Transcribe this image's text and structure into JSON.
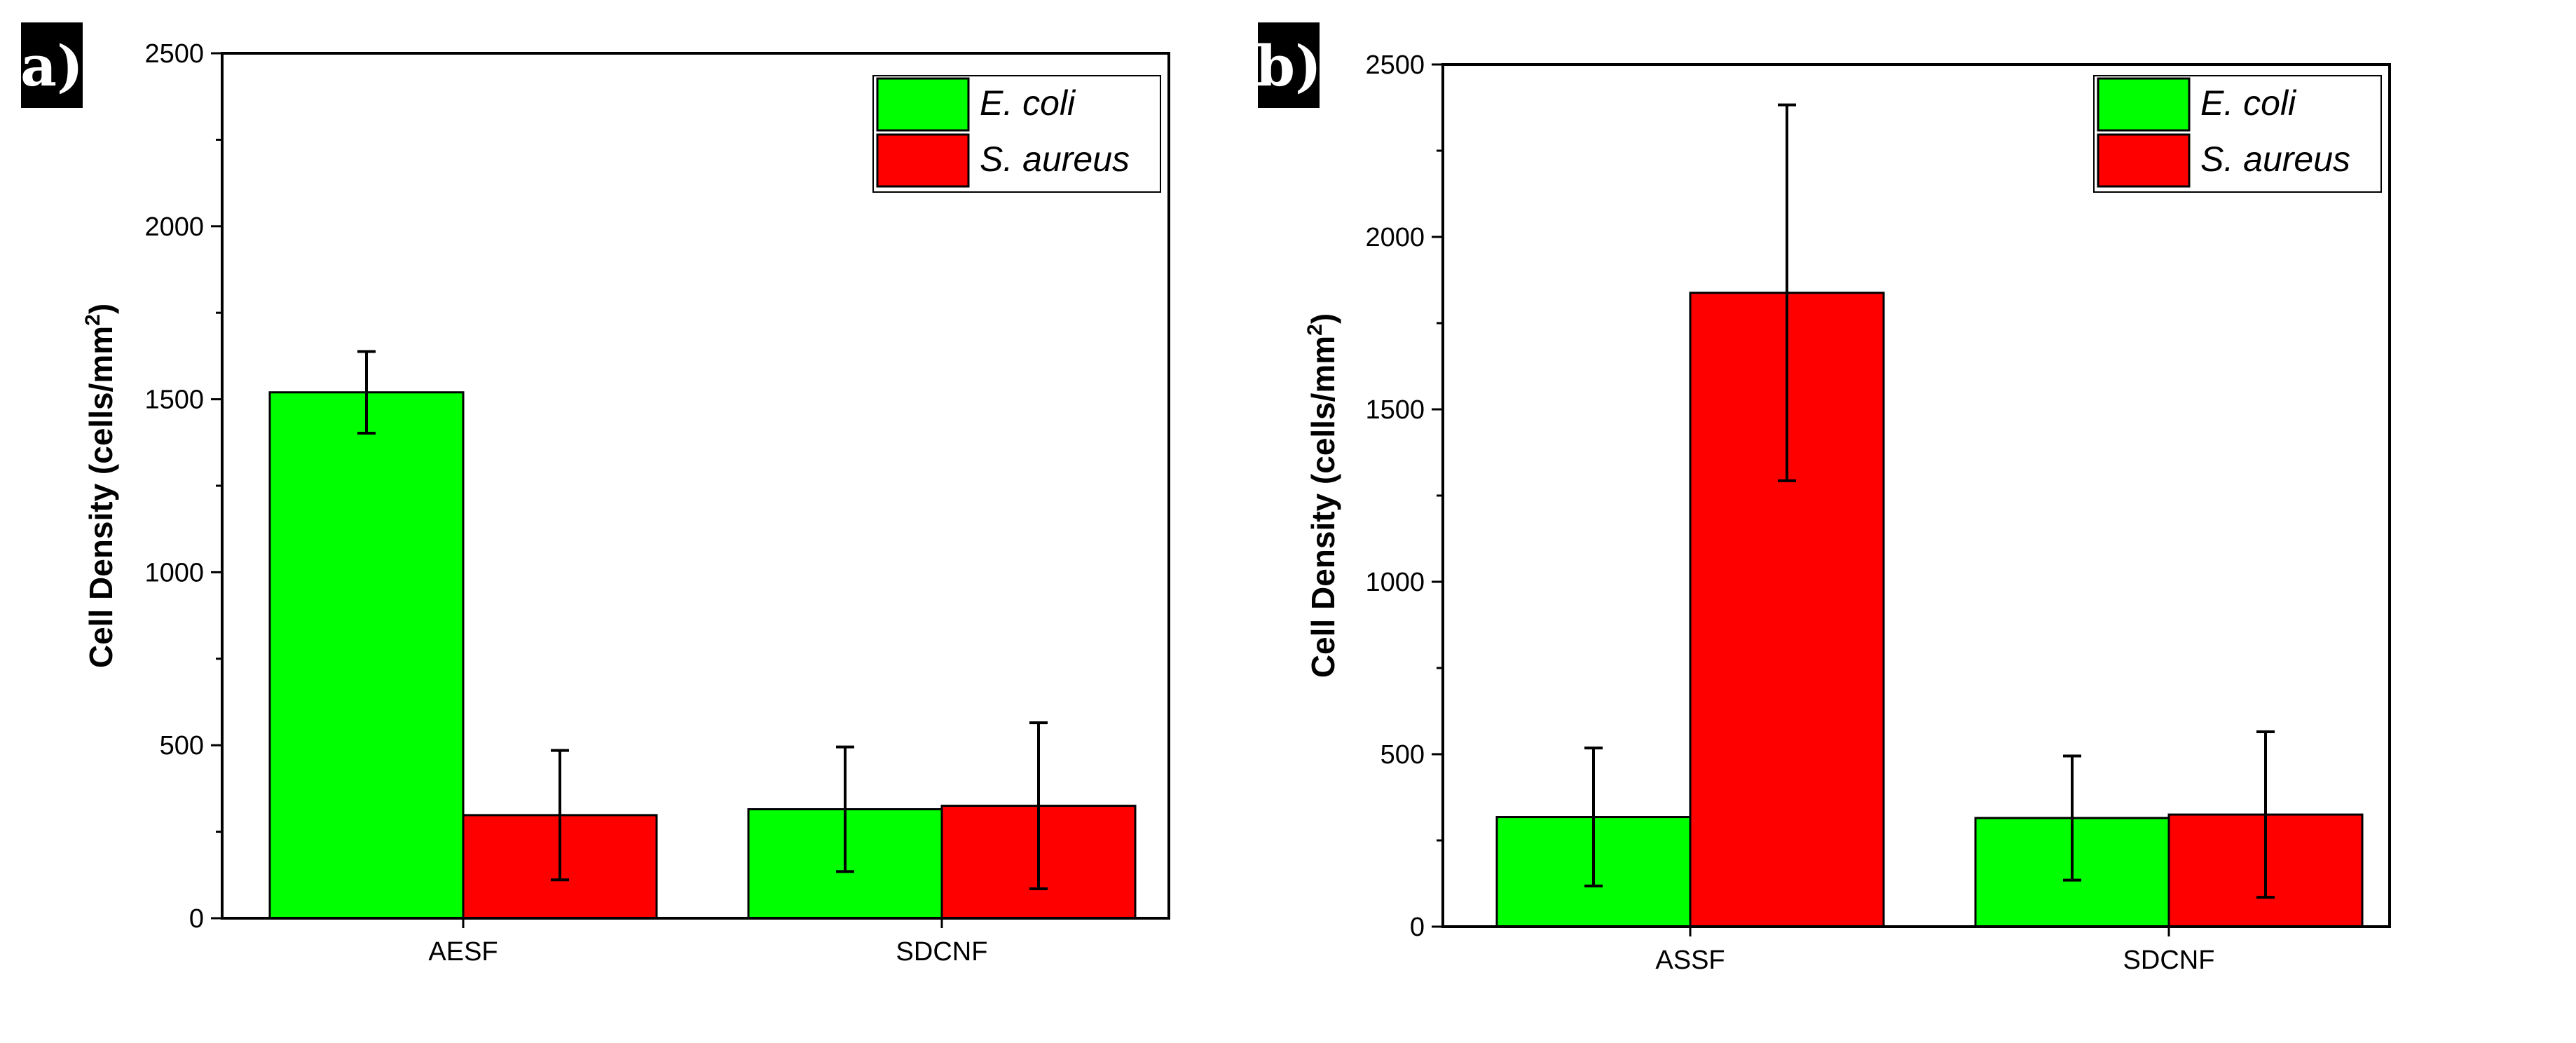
{
  "chart_data": [
    {
      "type": "bar",
      "panel_label": "a)",
      "categories": [
        "AESF",
        "SDCNF"
      ],
      "series": [
        {
          "name": "E. coli",
          "color": "#00ff00",
          "values": [
            1520,
            315
          ],
          "errors": [
            118,
            180
          ]
        },
        {
          "name": "S. aureus",
          "color": "#ff0000",
          "values": [
            298,
            325
          ],
          "errors": [
            187,
            240
          ]
        }
      ],
      "ylabel": "Cell Density (cells/mm",
      "ylabel_sup": "2",
      "ylabel_close": ")",
      "ylim": [
        0,
        2500
      ],
      "yticks": [
        "0",
        "500",
        "1000",
        "1500",
        "2000",
        "2500"
      ],
      "legend": "top-right"
    },
    {
      "type": "bar",
      "panel_label": "b)",
      "categories": [
        "ASSF",
        "SDCNF"
      ],
      "series": [
        {
          "name": "E. coli",
          "color": "#00ff00",
          "values": [
            318,
            315
          ],
          "errors": [
            200,
            180
          ]
        },
        {
          "name": "S. aureus",
          "color": "#ff0000",
          "values": [
            1838,
            325
          ],
          "errors": [
            545,
            240
          ]
        }
      ],
      "ylabel": "Cell Density (cells/mm",
      "ylabel_sup": "2",
      "ylabel_close": ")",
      "ylim": [
        0,
        2500
      ],
      "yticks": [
        "0",
        "500",
        "1000",
        "1500",
        "2000",
        "2500"
      ],
      "legend": "top-right"
    }
  ]
}
